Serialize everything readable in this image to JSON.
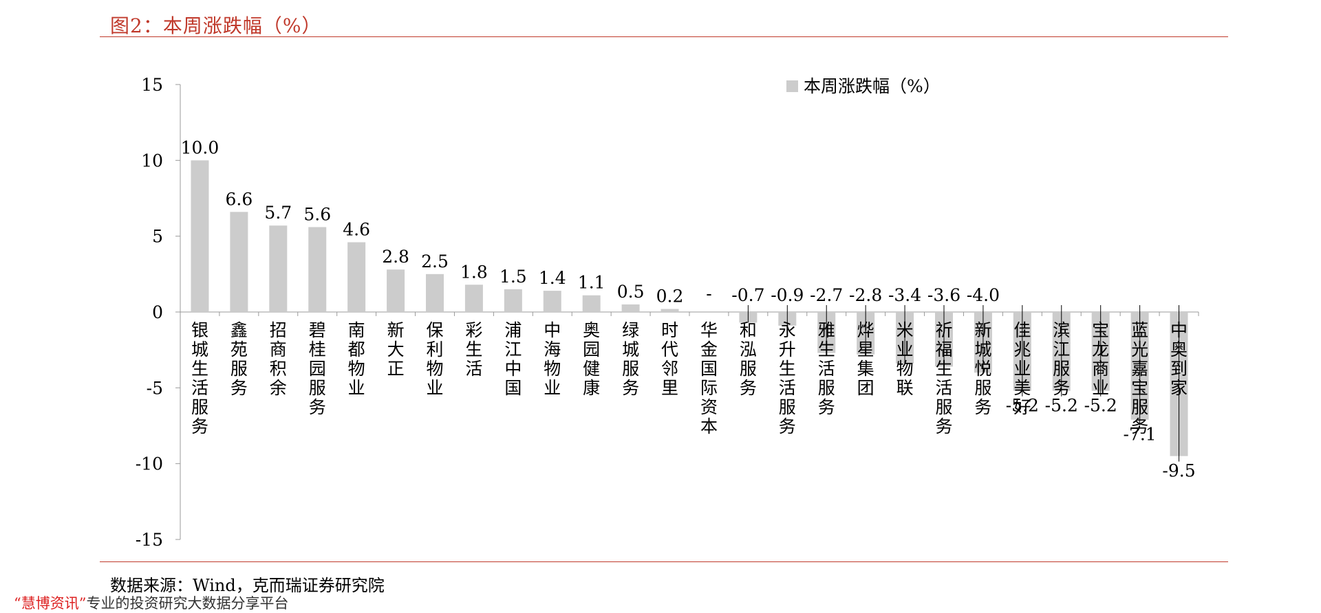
{
  "figure_title": "图2：本周涨跌幅（%）",
  "source_text": "数据来源：Wind，克而瑞证券研究院",
  "watermark": {
    "brand": "“慧博资讯”",
    "tagline": "专业的投资研究大数据分享平台"
  },
  "colors": {
    "accent": "#c0392b",
    "bar": "#cccccc",
    "axis": "#999999"
  },
  "chart_data": {
    "type": "bar",
    "title": "",
    "xlabel": "",
    "ylabel": "",
    "ylim": [
      -15,
      15
    ],
    "yticks": [
      "15",
      "10",
      "5",
      "0",
      "-5",
      "-10",
      "-15"
    ],
    "ytick_values": [
      15,
      10,
      5,
      0,
      -5,
      -10,
      -15
    ],
    "grid": false,
    "legend_position": "top-right",
    "categories": [
      "银城生活服务",
      "鑫苑服务",
      "招商积余",
      "碧桂园服务",
      "南都物业",
      "新大正",
      "保利物业",
      "彩生活",
      "浦江中国",
      "中海物业",
      "奥园健康",
      "绿城服务",
      "时代邻里",
      "华金国际资本",
      "和泓服务",
      "永升生活服务",
      "雅生活服务",
      "烨星集团",
      "米业物联",
      "祈福生活服务",
      "新城悦服务",
      "佳兆业美好",
      "滨江服务",
      "宝龙商业",
      "蓝光嘉宝服务",
      "中奥到家"
    ],
    "series": [
      {
        "name": "本周涨跌幅（%）",
        "values": [
          10.0,
          6.6,
          5.7,
          5.6,
          4.6,
          2.8,
          2.5,
          1.8,
          1.5,
          1.4,
          1.1,
          0.5,
          0.2,
          null,
          -0.7,
          -0.9,
          -2.7,
          -2.8,
          -3.4,
          -3.6,
          -4.0,
          -5.2,
          -5.2,
          -5.2,
          -7.1,
          -9.5
        ],
        "labels": [
          "10.0",
          "6.6",
          "5.7",
          "5.6",
          "4.6",
          "2.8",
          "2.5",
          "1.8",
          "1.5",
          "1.4",
          "1.1",
          "0.5",
          "0.2",
          "-",
          "-0.7",
          "-0.9",
          "-2.7",
          "-2.8",
          "-3.4",
          "-3.6",
          "-4.0",
          "-5.2",
          "-5.2",
          "-5.2",
          "-7.1",
          "-9.5"
        ]
      }
    ]
  }
}
